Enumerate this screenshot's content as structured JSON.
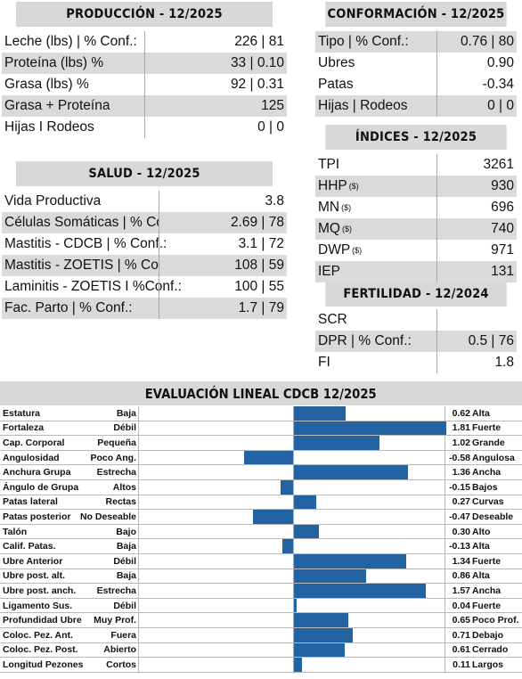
{
  "produccion": {
    "title": "PRODUCCIÓN - 12/2025",
    "rows": [
      {
        "label": "Leche (lbs) | % Conf.:",
        "value": "226 | 81"
      },
      {
        "label": "Proteína (lbs) %",
        "value": "33 | 0.10"
      },
      {
        "label": "Grasa (lbs) %",
        "value": "92 | 0.31"
      },
      {
        "label": "Grasa + Proteína",
        "value": "125"
      },
      {
        "label": "Hijas I Rodeos",
        "value": "0 | 0"
      }
    ]
  },
  "conformacion": {
    "title": "CONFORMACIÓN - 12/2025",
    "rows": [
      {
        "label": "Tipo | % Conf.:",
        "value": "0.76 | 80"
      },
      {
        "label": "Ubres",
        "value": "0.90"
      },
      {
        "label": "Patas",
        "value": "-0.34"
      },
      {
        "label": "Hijas | Rodeos",
        "value": "0 | 0"
      }
    ]
  },
  "indices": {
    "title": "ÍNDICES - 12/2025",
    "sup": "($)",
    "rows": [
      {
        "label": "TPI",
        "value": "3261"
      },
      {
        "label": "HHP",
        "value": "930"
      },
      {
        "label": "MN",
        "value": "696"
      },
      {
        "label": "MQ",
        "value": "740"
      },
      {
        "label": "DWP",
        "value": "971"
      },
      {
        "label": "IEP",
        "value": "131"
      }
    ]
  },
  "salud": {
    "title": "SALUD - 12/2025",
    "rows": [
      {
        "label": "Vida Productiva",
        "value": "3.8"
      },
      {
        "label": "Células Somáticas | % Conf.:",
        "value": "2.69 | 78"
      },
      {
        "label": "Mastitis - CDCB | % Conf.:",
        "value": "3.1 | 72"
      },
      {
        "label": "Mastitis - ZOETIS | % Conf.:",
        "value": "108 | 59"
      },
      {
        "label": "Laminitis - ZOETIS I %Conf.:",
        "value": "100  | 55"
      },
      {
        "label": "Fac. Parto | % Conf.:",
        "value": "1.7  | 79"
      }
    ]
  },
  "fertilidad": {
    "title": "FERTILIDAD - 12/2024",
    "rows": [
      {
        "label": "SCR",
        "value": ""
      },
      {
        "label": "DPR | % Conf.:",
        "value": "0.5 | 76"
      },
      {
        "label": "FI",
        "value": "1.8"
      }
    ]
  },
  "lineal": {
    "title": "EVALUACIÓN LINEAL CDCB 12/2025",
    "bar_color": "#2363a2",
    "rows": [
      {
        "trait": "Estatura",
        "low": "Baja",
        "value": 0.62,
        "value_text": "0.62",
        "high": "Alta"
      },
      {
        "trait": "Fortaleza",
        "low": "Débil",
        "value": 1.81,
        "value_text": "1.81",
        "high": "Fuerte"
      },
      {
        "trait": "Cap. Corporal",
        "low": "Pequeña",
        "value": 1.02,
        "value_text": "1.02",
        "high": "Grande"
      },
      {
        "trait": "Angulosidad",
        "low": "Poco Ang.",
        "value": -0.58,
        "value_text": "-0.58",
        "high": "Angulosa"
      },
      {
        "trait": "Anchura Grupa",
        "low": "Estrecha",
        "value": 1.36,
        "value_text": "1.36",
        "high": "Ancha"
      },
      {
        "trait": "Ángulo de Grupa",
        "low": "Altos",
        "value": -0.15,
        "value_text": "-0.15",
        "high": "Bajos"
      },
      {
        "trait": "Patas lateral",
        "low": "Rectas",
        "value": 0.27,
        "value_text": "0.27",
        "high": "Curvas"
      },
      {
        "trait": "Patas posterior",
        "low": "No Deseable",
        "value": -0.47,
        "value_text": "-0.47",
        "high": "Deseable"
      },
      {
        "trait": "Talón",
        "low": "Bajo",
        "value": 0.3,
        "value_text": "0.30",
        "high": "Alto"
      },
      {
        "trait": "Calif. Patas.",
        "low": "Baja",
        "value": -0.13,
        "value_text": "-0.13",
        "high": "Alta"
      },
      {
        "trait": "Ubre Anterior",
        "low": "Débil",
        "value": 1.34,
        "value_text": "1.34",
        "high": "Fuerte"
      },
      {
        "trait": "Ubre post. alt.",
        "low": "Baja",
        "value": 0.86,
        "value_text": "0.86",
        "high": "Alta"
      },
      {
        "trait": "Ubre post. anch.",
        "low": "Estrecha",
        "value": 1.57,
        "value_text": "1.57",
        "high": "Ancha"
      },
      {
        "trait": "Ligamento Sus.",
        "low": "Débil",
        "value": 0.04,
        "value_text": "0.04",
        "high": "Fuerte"
      },
      {
        "trait": "Profundidad Ubre",
        "low": "Muy Prof.",
        "value": 0.65,
        "value_text": "0.65",
        "high": "Poco Prof."
      },
      {
        "trait": "Coloc. Pez. Ant.",
        "low": "Fuera",
        "value": 0.71,
        "value_text": "0.71",
        "high": "Debajo"
      },
      {
        "trait": "Coloc. Pez. Post.",
        "low": "Abierto",
        "value": 0.61,
        "value_text": "0.61",
        "high": "Cerrado"
      },
      {
        "trait": "Longitud Pezones",
        "low": "Cortos",
        "value": 0.11,
        "value_text": "0.11",
        "high": "Largos"
      }
    ]
  }
}
